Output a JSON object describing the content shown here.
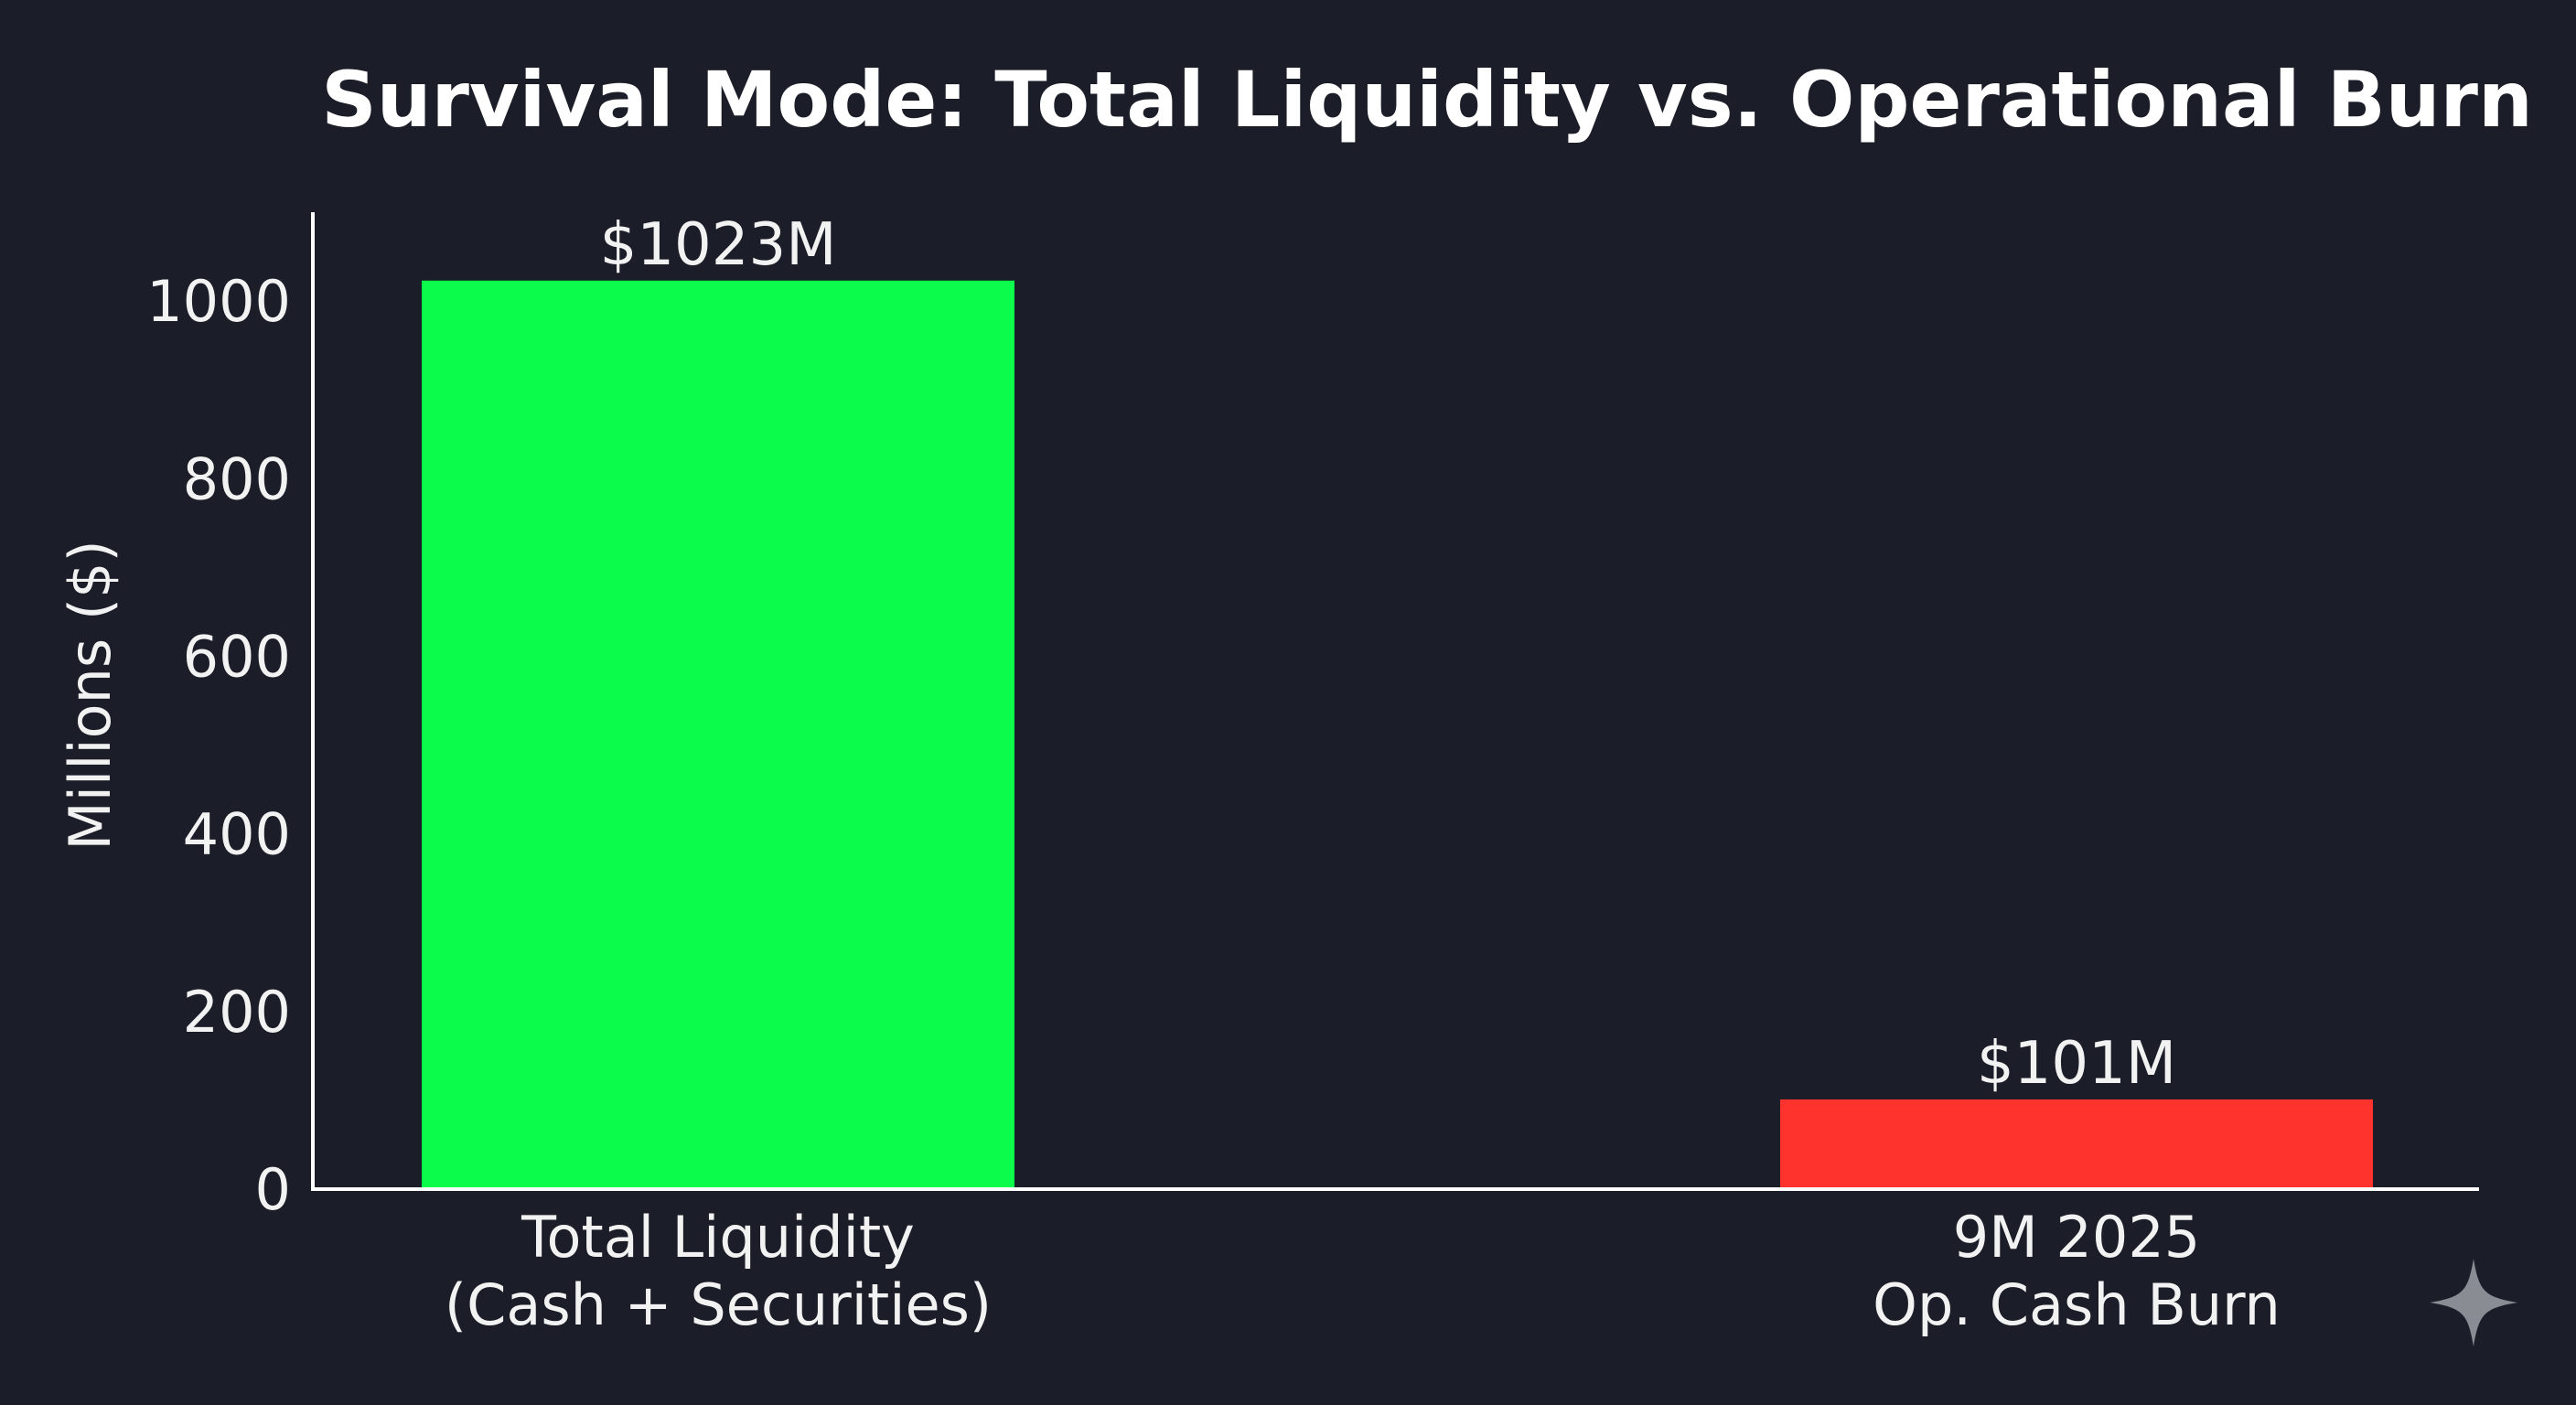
{
  "chart_data": {
    "type": "bar",
    "title": "Survival Mode: Total Liquidity vs. Operational Burn",
    "ylabel": "Millions ($)",
    "xlabel": "",
    "ylim": [
      0,
      1100
    ],
    "yticks": [
      0,
      200,
      400,
      600,
      800,
      1000
    ],
    "grid": false,
    "categories": [
      [
        "Total Liquidity",
        "(Cash + Securities)"
      ],
      [
        "9M 2025",
        "Op. Cash Burn"
      ]
    ],
    "values": [
      1023,
      101
    ],
    "data_labels": [
      "$1023M",
      "$101M"
    ],
    "colors": [
      "#0cfc4c",
      "#ff332e"
    ]
  },
  "colors": {
    "background": "#1b1d28",
    "text": "#f2f2f2",
    "axis": "#ffffff",
    "watermark": "#8a8c94"
  },
  "watermark": {
    "icon": "sparkle-icon"
  }
}
